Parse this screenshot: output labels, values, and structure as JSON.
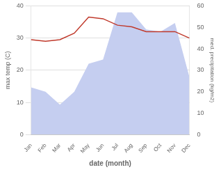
{
  "chart_data": {
    "type": "line",
    "categories": [
      "Jan",
      "Feb",
      "Mar",
      "Apr",
      "May",
      "Jun",
      "Jul",
      "Aug",
      "Sep",
      "Oct",
      "Nov",
      "Dec"
    ],
    "series": [
      {
        "type": "area",
        "axis": "y2",
        "color": "#c5cef0",
        "values": [
          22,
          20,
          14,
          20,
          33,
          35,
          57,
          57,
          49,
          48,
          52,
          27
        ]
      },
      {
        "type": "line",
        "axis": "y",
        "color": "#c0392b",
        "values": [
          29.5,
          29.0,
          29.5,
          31.5,
          36.5,
          36.0,
          34.0,
          33.5,
          32.0,
          32.0,
          32.0,
          30.0
        ]
      }
    ],
    "xlabel": "date (month)",
    "ylabel": "max temp (C)",
    "y2label": "med. precipitation (kg/m2)",
    "ylim": [
      0,
      40
    ],
    "yticks": [
      0,
      10,
      20,
      30,
      40
    ],
    "y2lim": [
      0,
      60
    ],
    "y2ticks": [
      0,
      10,
      20,
      30,
      40,
      50,
      60
    ],
    "grid": true
  }
}
